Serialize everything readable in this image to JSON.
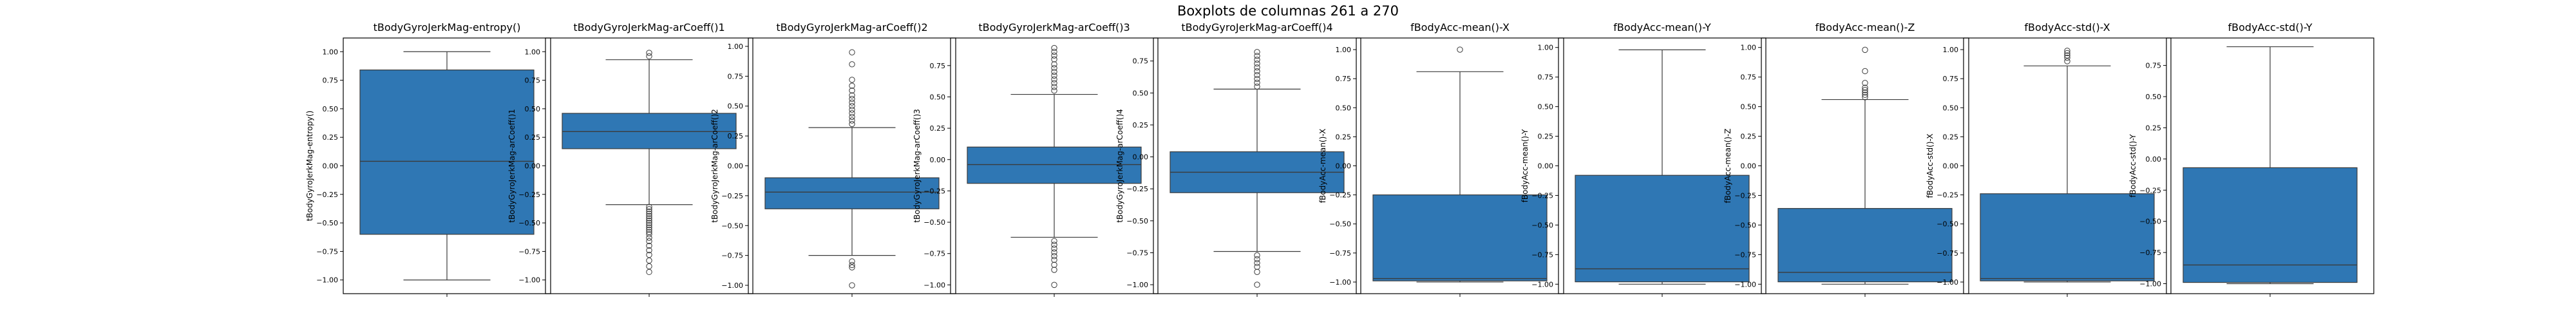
{
  "figure": {
    "title": "Boxplots de columnas 261 a 270"
  },
  "style": {
    "box_fill": "#2f77b4",
    "line_color": "#3b3b3b",
    "frame_color": "#000000",
    "background": "#ffffff"
  },
  "chart_data": [
    {
      "type": "box",
      "title": "tBodyGyroJerkMag-entropy()",
      "xlabel": "",
      "ylabel": "tBodyGyroJerkMag-entropy()",
      "ylim": [
        -1.12,
        1.12
      ],
      "yticks": [
        -1.0,
        -0.75,
        -0.5,
        -0.25,
        0.0,
        0.25,
        0.5,
        0.75,
        1.0
      ],
      "ytick_labels": [
        "−1.00",
        "−0.75",
        "−0.50",
        "−0.25",
        "0.00",
        "0.25",
        "0.50",
        "0.75",
        "1.00"
      ],
      "whisker_low": -1.0,
      "q1": -0.6,
      "median": 0.04,
      "q3": 0.84,
      "whisker_high": 1.0,
      "outliers": []
    },
    {
      "type": "box",
      "title": "tBodyGyroJerkMag-arCoeff()1",
      "xlabel": "",
      "ylabel": "tBodyGyroJerkMag-arCoeff()1",
      "ylim": [
        -1.12,
        1.12
      ],
      "yticks": [
        -1.0,
        -0.75,
        -0.5,
        -0.25,
        0.0,
        0.25,
        0.5,
        0.75,
        1.0
      ],
      "ytick_labels": [
        "−1.00",
        "−0.75",
        "−0.50",
        "−0.25",
        "0.00",
        "0.25",
        "0.50",
        "0.75",
        "1.00"
      ],
      "whisker_low": -0.34,
      "q1": 0.15,
      "median": 0.3,
      "q3": 0.46,
      "whisker_high": 0.93,
      "outliers": [
        0.96,
        0.99,
        -0.36,
        -0.38,
        -0.4,
        -0.42,
        -0.44,
        -0.46,
        -0.48,
        -0.5,
        -0.52,
        -0.54,
        -0.56,
        -0.58,
        -0.6,
        -0.63,
        -0.66,
        -0.7,
        -0.74,
        -0.78,
        -0.83,
        -0.88,
        -0.93
      ]
    },
    {
      "type": "box",
      "title": "tBodyGyroJerkMag-arCoeff()2",
      "xlabel": "",
      "ylabel": "tBodyGyroJerkMag-arCoeff()2",
      "ylim": [
        -1.07,
        1.07
      ],
      "yticks": [
        -1.0,
        -0.75,
        -0.5,
        -0.25,
        0.0,
        0.25,
        0.5,
        0.75,
        1.0
      ],
      "ytick_labels": [
        "−1.00",
        "−0.75",
        "−0.50",
        "−0.25",
        "0.00",
        "0.25",
        "0.50",
        "0.75",
        "1.00"
      ],
      "whisker_low": -0.75,
      "q1": -0.36,
      "median": -0.22,
      "q3": -0.1,
      "whisker_high": 0.32,
      "outliers": [
        0.35,
        0.38,
        0.41,
        0.44,
        0.47,
        0.5,
        0.53,
        0.56,
        0.59,
        0.63,
        0.67,
        0.72,
        0.85,
        0.95,
        -0.8,
        -0.83,
        -0.85,
        -1.0
      ]
    },
    {
      "type": "box",
      "title": "tBodyGyroJerkMag-arCoeff()3",
      "xlabel": "",
      "ylabel": "tBodyGyroJerkMag-arCoeff()3",
      "ylim": [
        -1.07,
        0.97
      ],
      "yticks": [
        -1.0,
        -0.75,
        -0.5,
        -0.25,
        0.0,
        0.25,
        0.5,
        0.75
      ],
      "ytick_labels": [
        "−1.00",
        "−0.75",
        "−0.50",
        "−0.25",
        "0.00",
        "0.25",
        "0.50",
        "0.75"
      ],
      "whisker_low": -0.62,
      "q1": -0.19,
      "median": -0.04,
      "q3": 0.1,
      "whisker_high": 0.52,
      "outliers": [
        0.55,
        0.58,
        0.61,
        0.64,
        0.67,
        0.7,
        0.73,
        0.76,
        0.8,
        0.83,
        0.86,
        0.89,
        -0.65,
        -0.68,
        -0.71,
        -0.74,
        -0.77,
        -0.8,
        -0.84,
        -0.88,
        -1.0
      ]
    },
    {
      "type": "box",
      "title": "tBodyGyroJerkMag-arCoeff()4",
      "xlabel": "",
      "ylabel": "tBodyGyroJerkMag-arCoeff()4",
      "ylim": [
        -1.07,
        0.93
      ],
      "yticks": [
        -1.0,
        -0.75,
        -0.5,
        -0.25,
        0.0,
        0.25,
        0.5,
        0.75
      ],
      "ytick_labels": [
        "−1.00",
        "−0.75",
        "−0.50",
        "−0.25",
        "0.00",
        "0.25",
        "0.50",
        "0.75"
      ],
      "whisker_low": -0.74,
      "q1": -0.28,
      "median": -0.12,
      "q3": 0.04,
      "whisker_high": 0.53,
      "outliers": [
        0.55,
        0.58,
        0.61,
        0.64,
        0.67,
        0.7,
        0.73,
        0.76,
        0.79,
        0.82,
        -0.77,
        -0.8,
        -0.83,
        -0.86,
        -0.9,
        -1.0
      ]
    },
    {
      "type": "box",
      "title": "fBodyAcc-mean()-X",
      "xlabel": "",
      "ylabel": "fBodyAcc-mean()-X",
      "ylim": [
        -1.1,
        1.1
      ],
      "yticks": [
        -1.0,
        -0.75,
        -0.5,
        -0.25,
        0.0,
        0.25,
        0.5,
        0.75,
        1.0
      ],
      "ytick_labels": [
        "−1.00",
        "−0.75",
        "−0.50",
        "−0.25",
        "0.00",
        "0.25",
        "0.50",
        "0.75",
        "1.00"
      ],
      "whisker_low": -1.0,
      "q1": -0.99,
      "median": -0.97,
      "q3": -0.25,
      "whisker_high": 0.81,
      "outliers": [
        1.0
      ]
    },
    {
      "type": "box",
      "title": "fBodyAcc-mean()-Y",
      "xlabel": "",
      "ylabel": "fBodyAcc-mean()-Y",
      "ylim": [
        -1.08,
        1.08
      ],
      "yticks": [
        -1.0,
        -0.75,
        -0.5,
        -0.25,
        0.0,
        0.25,
        0.5,
        0.75,
        1.0
      ],
      "ytick_labels": [
        "−1.00",
        "−0.75",
        "−0.50",
        "−0.25",
        "0.00",
        "0.25",
        "0.50",
        "0.75",
        "1.00"
      ],
      "whisker_low": -1.0,
      "q1": -0.98,
      "median": -0.87,
      "q3": -0.08,
      "whisker_high": 0.98,
      "outliers": []
    },
    {
      "type": "box",
      "title": "fBodyAcc-mean()-Z",
      "xlabel": "",
      "ylabel": "fBodyAcc-mean()-Z",
      "ylim": [
        -1.08,
        1.08
      ],
      "yticks": [
        -1.0,
        -0.75,
        -0.5,
        -0.25,
        0.0,
        0.25,
        0.5,
        0.75,
        1.0
      ],
      "ytick_labels": [
        "−1.00",
        "−0.75",
        "−0.50",
        "−0.25",
        "0.00",
        "0.25",
        "0.50",
        "0.75",
        "1.00"
      ],
      "whisker_low": -1.0,
      "q1": -0.98,
      "median": -0.9,
      "q3": -0.36,
      "whisker_high": 0.56,
      "outliers": [
        0.58,
        0.6,
        0.62,
        0.64,
        0.66,
        0.7,
        0.8,
        0.98
      ]
    },
    {
      "type": "box",
      "title": "fBodyAcc-std()-X",
      "xlabel": "",
      "ylabel": "fBodyAcc-std()-X",
      "ylim": [
        -1.1,
        1.1
      ],
      "yticks": [
        -1.0,
        -0.75,
        -0.5,
        -0.25,
        0.0,
        0.25,
        0.5,
        0.75,
        1.0
      ],
      "ytick_labels": [
        "−1.00",
        "−0.75",
        "−0.50",
        "−0.25",
        "0.00",
        "0.25",
        "0.50",
        "0.75",
        "1.00"
      ],
      "whisker_low": -1.0,
      "q1": -0.99,
      "median": -0.97,
      "q3": -0.24,
      "whisker_high": 0.86,
      "outliers": [
        0.9,
        0.93,
        0.95,
        0.97,
        0.99
      ]
    },
    {
      "type": "box",
      "title": "fBodyAcc-std()-Y",
      "xlabel": "",
      "ylabel": "fBodyAcc-std()-Y",
      "ylim": [
        -1.08,
        0.97
      ],
      "yticks": [
        -1.0,
        -0.75,
        -0.5,
        -0.25,
        0.0,
        0.25,
        0.5,
        0.75
      ],
      "ytick_labels": [
        "−1.00",
        "−0.75",
        "−0.50",
        "−0.25",
        "0.00",
        "0.25",
        "0.50",
        "0.75"
      ],
      "whisker_low": -1.0,
      "q1": -0.99,
      "median": -0.85,
      "q3": -0.07,
      "whisker_high": 0.9,
      "outliers": []
    }
  ]
}
